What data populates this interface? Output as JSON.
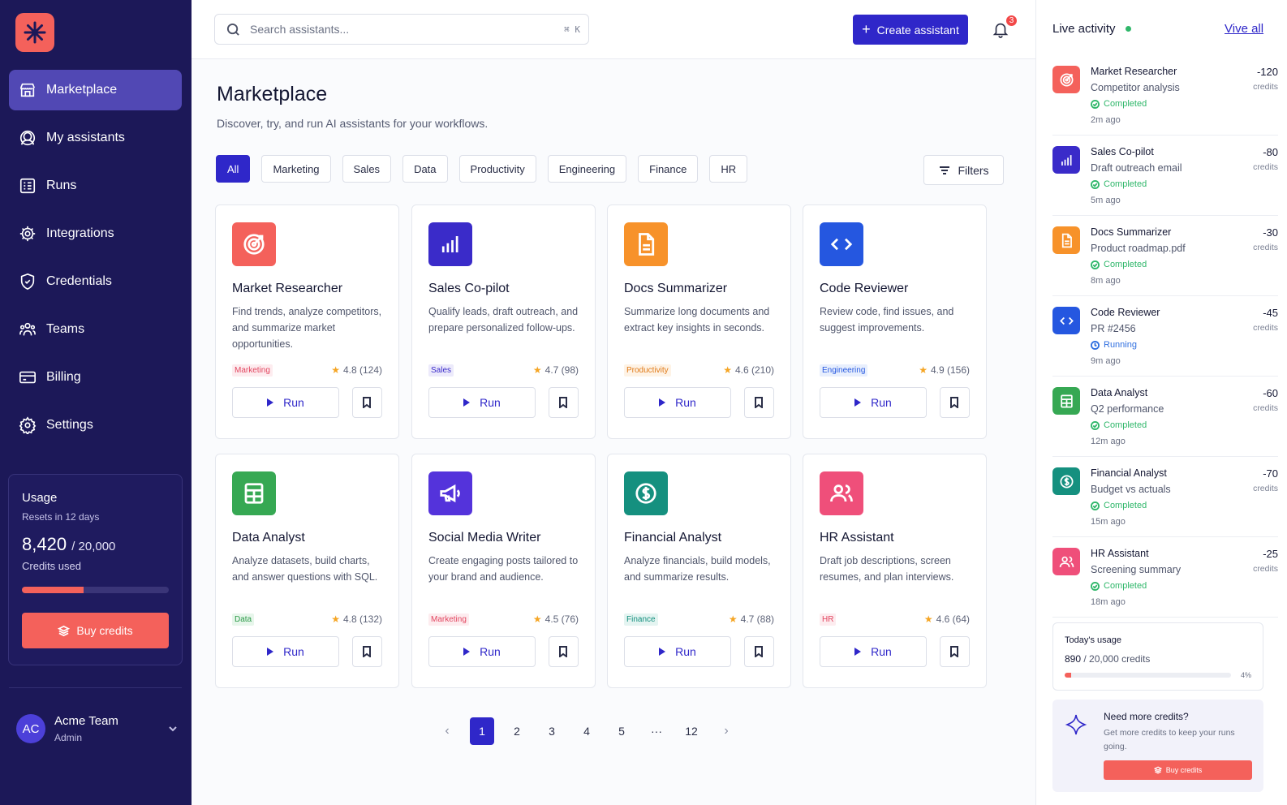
{
  "colors": {
    "brand": "#2f27c9",
    "accent": "#f4615b",
    "sidebar_bg": "#1c1858",
    "success": "#2fb76a",
    "running": "#2f6fe0"
  },
  "sidebar": {
    "logo_icon": "asterisk-logo",
    "items": [
      {
        "label": "Marketplace",
        "icon": "store-icon",
        "active": true
      },
      {
        "label": "My assistants",
        "icon": "assistant-icon"
      },
      {
        "label": "Runs",
        "icon": "runs-icon"
      },
      {
        "label": "Integrations",
        "icon": "gear-integration-icon"
      },
      {
        "label": "Credentials",
        "icon": "shield-icon"
      },
      {
        "label": "Teams",
        "icon": "teams-icon"
      },
      {
        "label": "Billing",
        "icon": "card-icon"
      },
      {
        "label": "Settings",
        "icon": "gear-icon"
      }
    ],
    "usage": {
      "title": "Usage",
      "resets": "Resets in 12 days",
      "used": "8,420",
      "total": "/ 20,000",
      "label": "Credits used",
      "fill_pct": 42,
      "buy_label": "Buy credits"
    },
    "team": {
      "initials": "AC",
      "name": "Acme Team",
      "role": "Admin"
    }
  },
  "header": {
    "search_placeholder": "Search assistants...",
    "shortcut": "⌘ K",
    "create_label": "Create assistant",
    "notification_count": "3"
  },
  "page": {
    "title": "Marketplace",
    "subtitle": "Discover, try, and run AI assistants for your workflows."
  },
  "categories": [
    "All",
    "Marketing",
    "Sales",
    "Data",
    "Productivity",
    "Engineering",
    "Finance",
    "HR"
  ],
  "filters_label": "Filters",
  "assistants": [
    {
      "name": "Market Researcher",
      "desc": "Find trends, analyze competitors, and summarize market opportunities.",
      "tag": "Marketing",
      "rating": "4.8 (124)",
      "color": "#f4615b",
      "icon": "target-icon",
      "tag_fg": "#e2455f",
      "tag_bg": "#fdecef"
    },
    {
      "name": "Sales Co-pilot",
      "desc": "Qualify leads, draft outreach, and prepare personalized follow-ups.",
      "tag": "Sales",
      "rating": "4.7 (98)",
      "color": "#3a2bc9",
      "icon": "bar-chart-icon",
      "tag_fg": "#3a2bc9",
      "tag_bg": "#eceafb"
    },
    {
      "name": "Docs Summarizer",
      "desc": "Summarize long documents and extract key insights in seconds.",
      "tag": "Productivity",
      "rating": "4.6 (210)",
      "color": "#f7922a",
      "icon": "document-icon",
      "tag_fg": "#e07a17",
      "tag_bg": "#fef3e6"
    },
    {
      "name": "Code Reviewer",
      "desc": "Review code, find issues, and suggest improvements.",
      "tag": "Engineering",
      "rating": "4.9 (156)",
      "color": "#2557e0",
      "icon": "code-icon",
      "tag_fg": "#2557e0",
      "tag_bg": "#e8effd"
    },
    {
      "name": "Data Analyst",
      "desc": "Analyze datasets, build charts, and answer questions with SQL.",
      "tag": "Data",
      "rating": "4.8 (132)",
      "color": "#36a853",
      "icon": "table-icon",
      "tag_fg": "#2c9a48",
      "tag_bg": "#e7f6eb"
    },
    {
      "name": "Social Media Writer",
      "desc": "Create engaging posts tailored to your brand and audience.",
      "tag": "Marketing",
      "rating": "4.5 (76)",
      "color": "#5433db",
      "icon": "megaphone-icon",
      "tag_fg": "#e2455f",
      "tag_bg": "#fdecef"
    },
    {
      "name": "Financial Analyst",
      "desc": "Analyze financials, build models, and summarize results.",
      "tag": "Finance",
      "rating": "4.7 (88)",
      "color": "#15907f",
      "icon": "dollar-icon",
      "tag_fg": "#15907f",
      "tag_bg": "#e4f4f1"
    },
    {
      "name": "HR Assistant",
      "desc": "Draft job descriptions, screen resumes, and plan interviews.",
      "tag": "HR",
      "rating": "4.6 (64)",
      "color": "#ef4f7a",
      "icon": "people-icon",
      "tag_fg": "#e2455f",
      "tag_bg": "#fdecef"
    }
  ],
  "run_label": "Run",
  "pagination": {
    "pages": [
      "1",
      "2",
      "3",
      "4",
      "5",
      "···",
      "12"
    ],
    "current": "1",
    "prev": "‹",
    "next": "›"
  },
  "activity": {
    "title": "Live activity",
    "view_all": "Vive all",
    "items": [
      {
        "name": "Market Researcher",
        "task": "Competitor analysis",
        "status": "Completed",
        "time": "2m ago",
        "cost": "-120",
        "unit": "credits",
        "color": "#f4615b",
        "icon": "target-icon"
      },
      {
        "name": "Sales Co-pilot",
        "task": "Draft outreach email",
        "status": "Completed",
        "time": "5m ago",
        "cost": "-80",
        "unit": "credits",
        "color": "#3a2bc9",
        "icon": "bar-chart-icon"
      },
      {
        "name": "Docs Summarizer",
        "task": "Product roadmap.pdf",
        "status": "Completed",
        "time": "8m ago",
        "cost": "-30",
        "unit": "credits",
        "color": "#f7922a",
        "icon": "document-icon"
      },
      {
        "name": "Code Reviewer",
        "task": "PR #2456",
        "status": "Running",
        "time": "9m ago",
        "cost": "-45",
        "unit": "credits",
        "color": "#2557e0",
        "icon": "code-icon"
      },
      {
        "name": "Data Analyst",
        "task": "Q2 performance",
        "status": "Completed",
        "time": "12m ago",
        "cost": "-60",
        "unit": "credits",
        "color": "#36a853",
        "icon": "table-icon"
      },
      {
        "name": "Financial Analyst",
        "task": "Budget vs actuals",
        "status": "Completed",
        "time": "15m ago",
        "cost": "-70",
        "unit": "credits",
        "color": "#15907f",
        "icon": "dollar-icon"
      },
      {
        "name": "HR Assistant",
        "task": "Screening summary",
        "status": "Completed",
        "time": "18m ago",
        "cost": "-25",
        "unit": "credits",
        "color": "#ef4f7a",
        "icon": "people-icon"
      }
    ],
    "today": {
      "title": "Today's usage",
      "used": "890",
      "total": "/ 20,000 credits",
      "pct": "4%",
      "fill_pct": 4
    },
    "promo": {
      "title": "Need more credits?",
      "desc": "Get more credits to keep your runs going.",
      "button": "Buy credits"
    }
  }
}
